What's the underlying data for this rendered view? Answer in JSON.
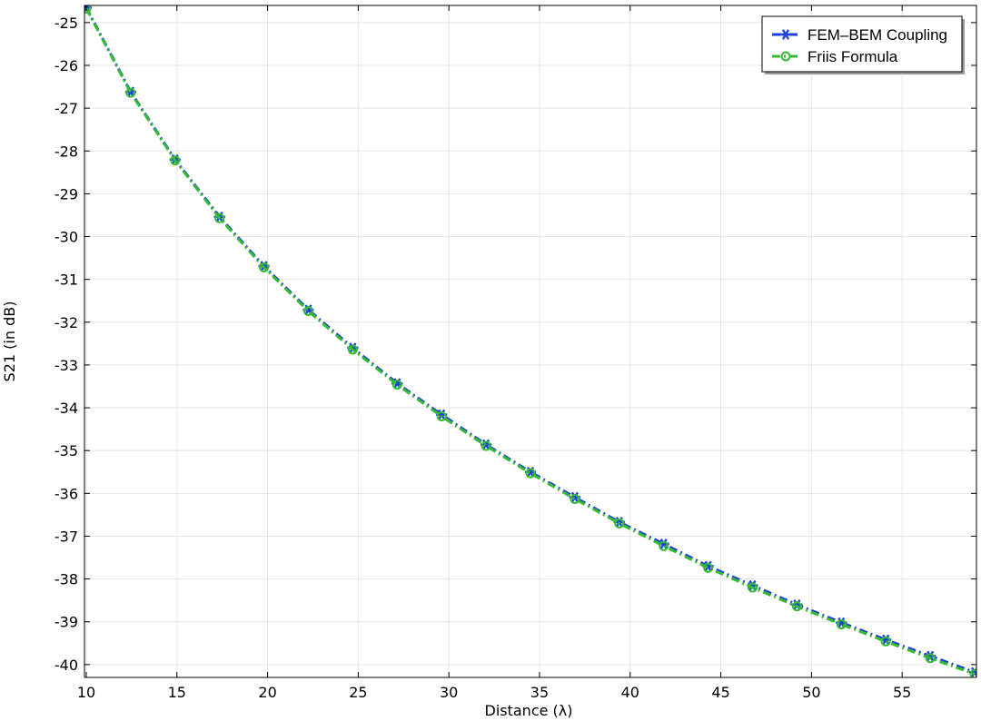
{
  "chart_data": {
    "type": "line",
    "title": "",
    "xlabel": "Distance (λ)",
    "ylabel": "S21 (in dB)",
    "xlim": [
      9.9,
      59.1
    ],
    "ylim": [
      -40.3,
      -24.6
    ],
    "x_ticks": [
      "10",
      "15",
      "20",
      "25",
      "30",
      "35",
      "40",
      "45",
      "50",
      "55"
    ],
    "y_ticks": [
      "-25",
      "-26",
      "-27",
      "-28",
      "-29",
      "-30",
      "-31",
      "-32",
      "-33",
      "-34",
      "-35",
      "-36",
      "-37",
      "-38",
      "-39",
      "-40"
    ],
    "grid": true,
    "legend_position": "top-right",
    "x": [
      10,
      12.45,
      14.9,
      17.35,
      19.8,
      22.25,
      24.7,
      27.15,
      29.6,
      32.05,
      34.5,
      36.95,
      39.4,
      41.85,
      44.3,
      46.75,
      49.2,
      51.65,
      54.1,
      56.55,
      59.0
    ],
    "series": [
      {
        "name": "FEM–BEM Coupling",
        "color": "#1f3fe0",
        "marker": "asterisk",
        "line_style": "dash-dot",
        "values": [
          -24.65,
          -26.62,
          -28.2,
          -29.54,
          -30.69,
          -31.71,
          -32.6,
          -33.43,
          -34.16,
          -34.86,
          -35.5,
          -36.09,
          -36.67,
          -37.18,
          -37.7,
          -38.15,
          -38.6,
          -39.02,
          -39.42,
          -39.8,
          -40.18
        ]
      },
      {
        "name": "Friis Formula",
        "color": "#33bb33",
        "marker": "circle",
        "line_style": "dash-dot",
        "values": [
          -24.67,
          -26.64,
          -28.22,
          -29.57,
          -30.72,
          -31.74,
          -32.64,
          -33.46,
          -34.2,
          -34.89,
          -35.53,
          -36.13,
          -36.7,
          -37.23,
          -37.74,
          -38.2,
          -38.64,
          -39.06,
          -39.46,
          -39.85,
          -40.22
        ]
      }
    ]
  }
}
